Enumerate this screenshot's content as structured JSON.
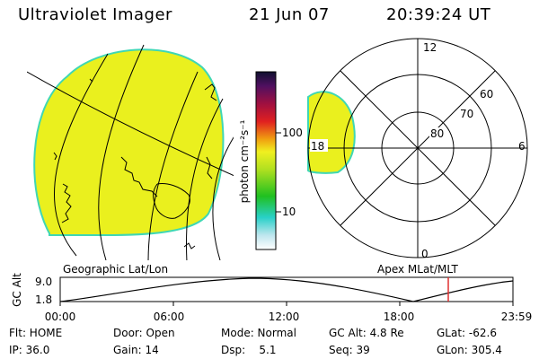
{
  "header": {
    "title": "Ultraviolet Imager",
    "date": "21 Jun 07",
    "time": "20:39:24 UT"
  },
  "colorbar": {
    "label": "photon cm⁻²s⁻¹",
    "ticks": [
      "100",
      "10"
    ]
  },
  "polar": {
    "mlt_labels": [
      "12",
      "18",
      "6",
      "0"
    ],
    "lat_labels": [
      "60",
      "70",
      "80"
    ]
  },
  "map_titles": {
    "left": "Geographic Lat/Lon",
    "right": "Apex MLat/MLT"
  },
  "altitude_plot": {
    "ylabel": "GC Alt",
    "ytick_top": "9.0",
    "ytick_bottom": "1.8",
    "xticks": [
      "00:00",
      "06:00",
      "12:00",
      "18:00",
      "23:59"
    ]
  },
  "status": {
    "flt": "Flt: HOME",
    "door": "Door: Open",
    "mode": "Mode: Normal",
    "gc_alt": "GC Alt: 4.8 Re",
    "glat": "GLat: -62.6",
    "ip": "IP: 36.0",
    "gain": "Gain: 14",
    "dsp": "Dsp:    5.1",
    "seq": "Seq: 39",
    "glon": "GLon: 305.4"
  },
  "colors": {
    "image_fill": "#eaf01e",
    "image_edge": "#3fd7b4",
    "cursor_line": "#e03030"
  }
}
